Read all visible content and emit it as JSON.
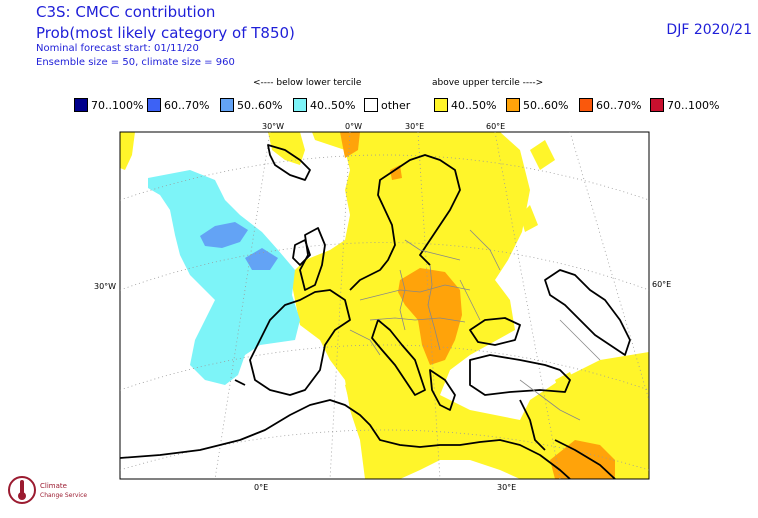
{
  "header": {
    "title": "C3S: CMCC contribution",
    "subtitle": "Prob(most likely category of T850)",
    "forecast_start": "Nominal forecast start: 01/11/20",
    "ensemble": "Ensemble size = 50, climate size = 960",
    "season": "DJF 2020/21"
  },
  "tercile_labels": {
    "below": "<---- below lower tercile",
    "above": "above upper tercile ---->"
  },
  "legend": [
    {
      "label": "70..100%",
      "color": "#00008b"
    },
    {
      "label": "60..70%",
      "color": "#3d62f5"
    },
    {
      "label": "50..60%",
      "color": "#63a3f5"
    },
    {
      "label": "40..50%",
      "color": "#7df4f8"
    },
    {
      "label": "other",
      "color": "#ffffff"
    },
    {
      "label": "40..50%",
      "color": "#fff52a"
    },
    {
      "label": "50..60%",
      "color": "#ffa30a"
    },
    {
      "label": "60..70%",
      "color": "#fa580c"
    },
    {
      "label": "70..100%",
      "color": "#c8102e"
    }
  ],
  "map": {
    "top_ticks": [
      "30°W",
      "0°W",
      "30°E",
      "60°E"
    ],
    "left_tick": "30°W",
    "right_tick": "60°E",
    "bottom_ticks": [
      "0°E",
      "30°E"
    ]
  },
  "logo": {
    "line1": "Climate",
    "line2": "Change Service"
  }
}
